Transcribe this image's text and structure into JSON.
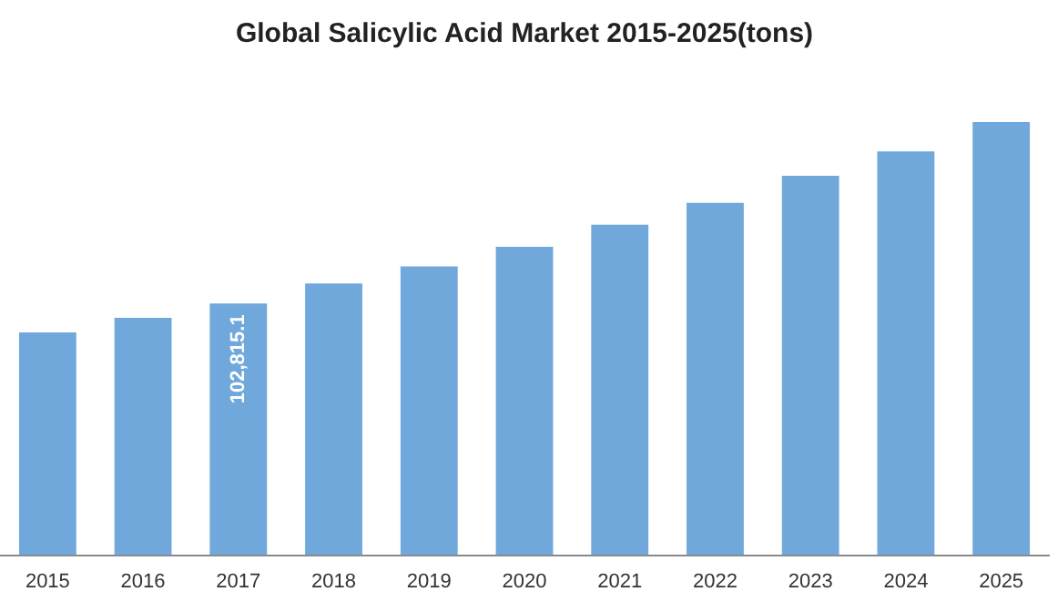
{
  "chart_data": {
    "type": "bar",
    "title": "Global Salicylic Acid Market 2015-2025(tons)",
    "categories": [
      "2015",
      "2016",
      "2017",
      "2018",
      "2019",
      "2020",
      "2021",
      "2022",
      "2023",
      "2024",
      "2025"
    ],
    "values": [
      91000,
      97000,
      102815.1,
      111000,
      118000,
      126000,
      135000,
      144000,
      155000,
      165000,
      177000
    ],
    "value_labels": [
      null,
      null,
      "102,815.1",
      null,
      null,
      null,
      null,
      null,
      null,
      null,
      null
    ],
    "color": "#70a8db",
    "grid": false,
    "legend": false
  }
}
